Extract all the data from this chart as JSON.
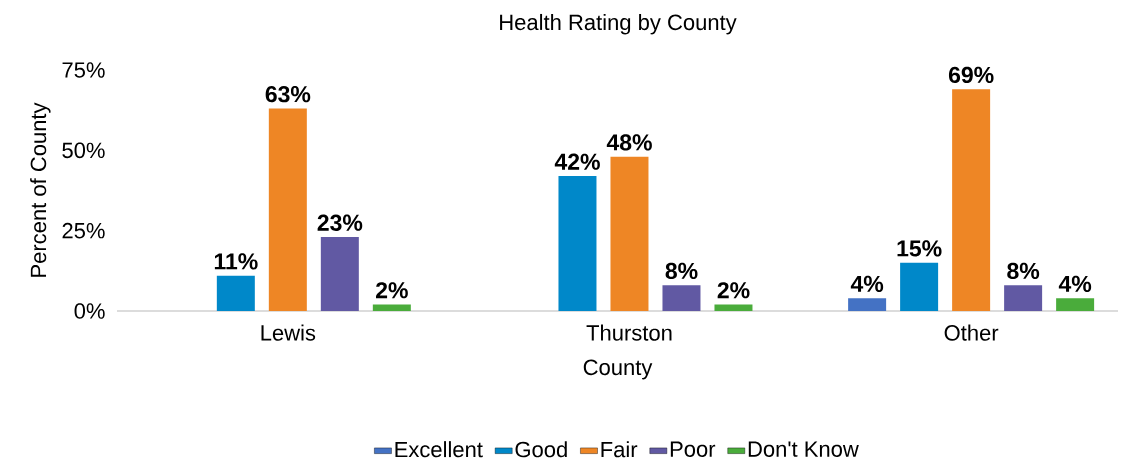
{
  "chart_data": {
    "type": "bar",
    "title": "Health Rating by County",
    "xlabel": "County",
    "ylabel": "Percent of County",
    "categories": [
      "Lewis",
      "Thurston",
      "Other"
    ],
    "series": [
      {
        "name": "Excellent",
        "color": "#4472c4",
        "values": [
          null,
          null,
          4
        ],
        "value_labels": [
          null,
          null,
          "4%"
        ]
      },
      {
        "name": "Good",
        "color": "#0088c9",
        "values": [
          11,
          42,
          15
        ],
        "value_labels": [
          "11%",
          "42%",
          "15%"
        ]
      },
      {
        "name": "Fair",
        "color": "#ee8625",
        "values": [
          63,
          48,
          69
        ],
        "value_labels": [
          "63%",
          "48%",
          "69%"
        ]
      },
      {
        "name": "Poor",
        "color": "#6159a3",
        "values": [
          23,
          8,
          8
        ],
        "value_labels": [
          "23%",
          "8%",
          "8%"
        ]
      },
      {
        "name": "Don't Know",
        "color": "#4aac3b",
        "values": [
          2,
          2,
          4
        ],
        "value_labels": [
          "2%",
          "2%",
          "4%"
        ]
      }
    ],
    "ylim": [
      0,
      75
    ],
    "yticks": [
      {
        "value": 0,
        "label": "0%"
      },
      {
        "value": 25,
        "label": "25%"
      },
      {
        "value": 50,
        "label": "50%"
      },
      {
        "value": 75,
        "label": "75%"
      }
    ],
    "legend": "bottom"
  }
}
